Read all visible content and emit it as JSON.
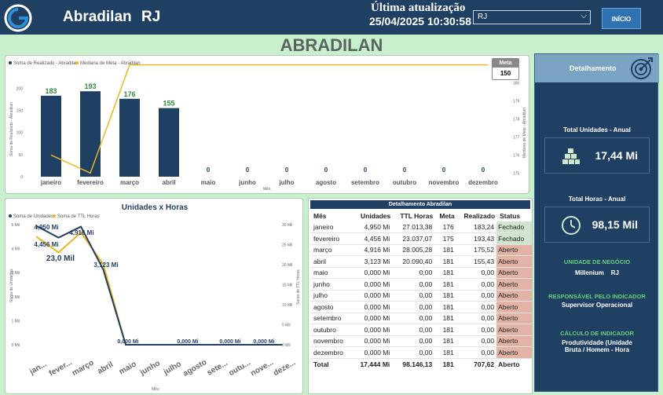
{
  "header": {
    "title": "Abradilan",
    "state": "RJ",
    "update_label": "Última atualização",
    "update_value": "25/04/2025 10:30:58",
    "select_value": "RJ",
    "start_button": "INÍCIO"
  },
  "main_title": "ABRADILAN",
  "bar_chart": {
    "legend": [
      "Soma de Realizado - Abradilan",
      "Mediana de Meta - Abradilan"
    ],
    "ylabel": "Soma de Realizado - Abradilan",
    "y2label": "Mediana de Meta - Abradilan",
    "xlabel": "Mês",
    "yticks": [
      "200",
      "150",
      "100",
      "50",
      "0"
    ],
    "y2ticks": [
      "180",
      "179",
      "178",
      "177",
      "176",
      "175"
    ],
    "meta_label": "Meta",
    "meta_value": "150"
  },
  "line_chart": {
    "title": "Unidades x Horas",
    "legend": [
      "Soma de Unidades",
      "Soma de TTL Horas"
    ],
    "ylabel": "Soma de Unidades",
    "y2label": "Soma de TTL Horas",
    "xlabel": "Mês",
    "yticks": [
      "5 Mil",
      "4 Mil",
      "3 Mil",
      "2 Mil",
      "1 Mil",
      "0 Mil"
    ],
    "y2ticks": [
      "30 Mil",
      "25 Mil",
      "20 Mil",
      "15 Mil",
      "10 Mil",
      "5 Mil",
      "0 Mil"
    ],
    "xticks": [
      "jan...",
      "fever...",
      "março",
      "abril",
      "maio",
      "junho",
      "julho",
      "agosto",
      "sete...",
      "outu...",
      "nove...",
      "deze..."
    ]
  },
  "chart_data": [
    {
      "type": "bar",
      "categories": [
        "janeiro",
        "fevereiro",
        "março",
        "abril",
        "maio",
        "junho",
        "julho",
        "agosto",
        "setembro",
        "outubro",
        "novembro",
        "dezembro"
      ],
      "series": [
        {
          "name": "Soma de Realizado - Abradilan",
          "values": [
            183,
            193,
            176,
            155,
            0,
            0,
            0,
            0,
            0,
            0,
            0,
            0
          ],
          "color": "#1f3f63"
        },
        {
          "name": "Mediana de Meta - Abradilan",
          "values": [
            176,
            175,
            181,
            181,
            181,
            181,
            181,
            181,
            181,
            181,
            181,
            181
          ],
          "color": "#e8b820"
        }
      ],
      "ylim": [
        0,
        220
      ],
      "y2lim": [
        174.8,
        180.2
      ]
    },
    {
      "type": "line",
      "title": "Unidades x Horas",
      "categories": [
        "jan...",
        "fever...",
        "março",
        "abril",
        "maio",
        "junho",
        "julho",
        "agosto",
        "sete...",
        "outu...",
        "nove...",
        "deze..."
      ],
      "series": [
        {
          "name": "Soma de Unidades",
          "values": [
            4950,
            4456,
            4916,
            3123,
            0,
            0,
            0,
            0,
            0,
            0,
            0,
            0
          ],
          "color": "#1f3f63"
        },
        {
          "name": "Soma de TTL Horas",
          "values": [
            27013,
            23037,
            28005,
            20090,
            0,
            0,
            0,
            0,
            0,
            0,
            0,
            0
          ],
          "color": "#e8b820"
        }
      ],
      "ylim": [
        0,
        5000
      ],
      "y2lim": [
        0,
        30000
      ],
      "point_labels": [
        "4,950 Mi",
        "4,456 Mi",
        "4,916 Mi",
        "3,123 Mi",
        "0,000 Mi",
        "0,000 Mi",
        "0,000 Mi",
        "0,000 Mi"
      ],
      "extra_label": "23,0 Mil"
    }
  ],
  "table": {
    "title": "Detalhamento Abradilan",
    "columns": [
      "Mês",
      "Unidades",
      "TTL Horas",
      "Meta",
      "Realizado",
      "Status"
    ],
    "rows": [
      [
        "janeiro",
        "4,950 Mi",
        "27.013,38",
        "176",
        "183,24",
        "Fechado"
      ],
      [
        "fevereiro",
        "4,456 Mi",
        "23.037,07",
        "175",
        "193,43",
        "Fechado"
      ],
      [
        "março",
        "4,916 Mi",
        "28.005,28",
        "181",
        "175,52",
        "Aberto"
      ],
      [
        "abril",
        "3,123 Mi",
        "20.090,40",
        "181",
        "155,43",
        "Aberto"
      ],
      [
        "maio",
        "0,000 Mi",
        "0,00",
        "181",
        "0,00",
        "Aberto"
      ],
      [
        "junho",
        "0,000 Mi",
        "0,00",
        "181",
        "0,00",
        "Aberto"
      ],
      [
        "julho",
        "0,000 Mi",
        "0,00",
        "181",
        "0,00",
        "Aberto"
      ],
      [
        "agosto",
        "0,000 Mi",
        "0,00",
        "181",
        "0,00",
        "Aberto"
      ],
      [
        "setembro",
        "0,000 Mi",
        "0,00",
        "181",
        "0,00",
        "Aberto"
      ],
      [
        "outubro",
        "0,000 Mi",
        "0,00",
        "181",
        "0,00",
        "Aberto"
      ],
      [
        "novembro",
        "0,000 Mi",
        "0,00",
        "181",
        "0,00",
        "Aberto"
      ],
      [
        "dezembro",
        "0,000 Mi",
        "0,00",
        "181",
        "0,00",
        "Aberto"
      ]
    ],
    "total": [
      "Total",
      "17,444 Mi",
      "98.146,13",
      "181",
      "707,62",
      "Aberto"
    ]
  },
  "side": {
    "header": "Detalhamento",
    "units_title": "Total Unidades - Anual",
    "units_value": "17,44 Mi",
    "hours_title": "Total Horas - Anual",
    "hours_value": "98,15 Mil",
    "business_unit_title": "UNIDADE DE NEGÓCIO",
    "business_unit_value": "Millenium    RJ",
    "responsible_title": "RESPONSÁVEL PELO INDICADOR",
    "responsible_value": "Supervisor Operacional",
    "calc_title": "CÁLCULO DE INDICADOR",
    "calc_value": "Produtividade (Unidade Bruta / Homem - Hora"
  },
  "colors": {
    "header_bg": "#1f3f63",
    "page_bg": "#c8f0cc",
    "bar": "#1f3f63",
    "target_line": "#e8b820",
    "fechado": "#cfe5cf",
    "aberto": "#e3b4a5",
    "accent_green": "#67d07a"
  }
}
